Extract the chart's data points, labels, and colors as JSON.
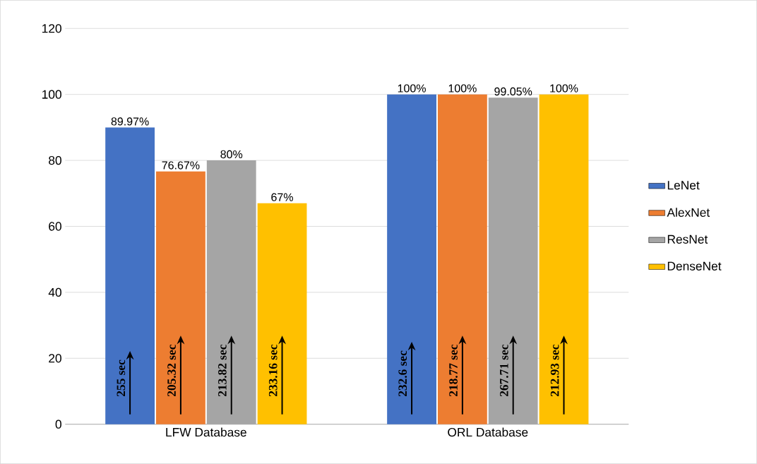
{
  "chart_data": {
    "type": "bar",
    "categories": [
      "LFW Database",
      "ORL Database"
    ],
    "series": [
      {
        "name": "LeNet",
        "color": "#4472c4",
        "values": [
          89.97,
          100
        ],
        "value_labels": [
          "89.97%",
          "100%"
        ]
      },
      {
        "name": "AlexNet",
        "color": "#ed7d31",
        "values": [
          76.67,
          100
        ],
        "value_labels": [
          "76.67%",
          "100%"
        ]
      },
      {
        "name": "ResNet",
        "color": "#a5a5a5",
        "values": [
          80,
          99.05
        ],
        "value_labels": [
          "80%",
          "99.05%"
        ]
      },
      {
        "name": "DenseNet",
        "color": "#ffc000",
        "values": [
          67,
          100
        ],
        "value_labels": [
          "67%",
          "100%"
        ]
      }
    ],
    "ylim": [
      0,
      120
    ],
    "yticks": [
      0,
      20,
      40,
      60,
      80,
      100,
      120
    ],
    "grid": "y",
    "legend": "right",
    "annotations": [
      "255 sec",
      "205.32 sec",
      "213.82 sec",
      "233.16 sec",
      "232.6 sec",
      "218.77 sec",
      "267.71 sec",
      "212.93 sec"
    ]
  }
}
